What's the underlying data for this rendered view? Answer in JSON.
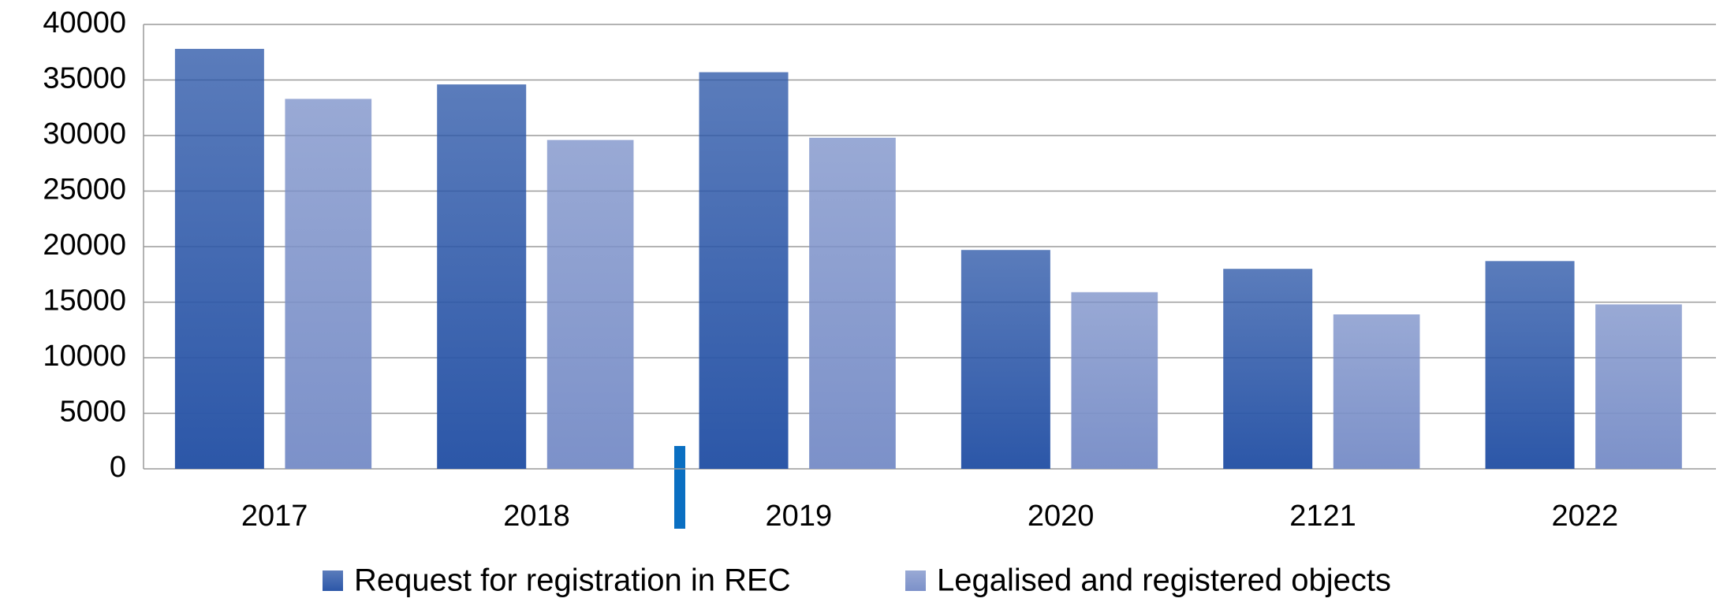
{
  "chart_data": {
    "type": "bar",
    "categories": [
      "2017",
      "2018",
      "2019",
      "2020",
      "2121",
      "2022"
    ],
    "series": [
      {
        "name": "Request for registration in REC",
        "color": "#2c57a8",
        "values": [
          37800,
          34600,
          35700,
          19700,
          18000,
          18700
        ]
      },
      {
        "name": "Legalised and registered objects",
        "color": "#7c91c9",
        "values": [
          33300,
          29600,
          29800,
          15900,
          13900,
          14800
        ]
      }
    ],
    "ylim": [
      0,
      40000
    ],
    "yticks": [
      0,
      5000,
      10000,
      15000,
      20000,
      25000,
      30000,
      35000,
      40000
    ],
    "grid": true,
    "legend": "bottom"
  }
}
